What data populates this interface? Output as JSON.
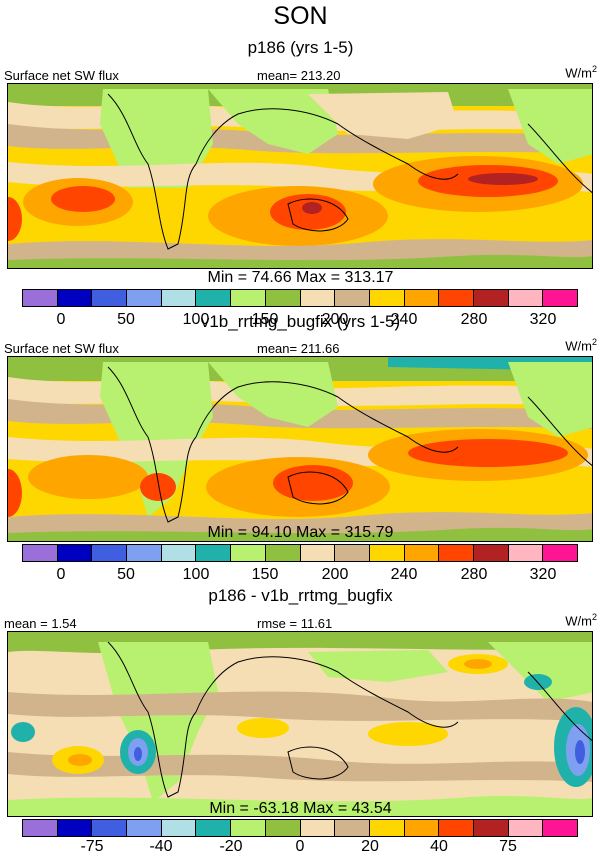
{
  "title": "SON",
  "palette": [
    "#9b6fd9",
    "#0000c0",
    "#3f5fe0",
    "#7f9ff0",
    "#b0e0e6",
    "#20b2aa",
    "#b8f070",
    "#8fc040",
    "#f5deb3",
    "#d2b48c",
    "#ffd700",
    "#ffa500",
    "#ff4500",
    "#b22222",
    "#ffb6c1",
    "#ff1493"
  ],
  "panels": [
    {
      "heading": "p186 (yrs 1-5)",
      "left_label": "Surface net SW flux",
      "center_label": "mean= 213.20",
      "units": "W/m",
      "units_exp": "2",
      "minmax": "Min =  74.66 Max = 313.17",
      "ticks": [
        "0",
        "50",
        "100",
        "150",
        "200",
        "240",
        "280",
        "320"
      ]
    },
    {
      "heading": "v1b_rrtmg_bugfix (yrs 1-5)",
      "left_label": "Surface net SW flux",
      "center_label": "mean= 211.66",
      "units": "W/m",
      "units_exp": "2",
      "minmax": "Min =  94.10 Max = 315.79",
      "ticks": [
        "0",
        "50",
        "100",
        "150",
        "200",
        "240",
        "280",
        "320"
      ]
    },
    {
      "heading": "p186 - v1b_rrtmg_bugfix",
      "left_label": "mean =   1.54",
      "center_label": "rmse =  11.61",
      "units": "W/m",
      "units_exp": "2",
      "minmax": "Min = -63.18 Max =  43.54",
      "ticks": [
        "-75",
        "-40",
        "-20",
        "0",
        "20",
        "40",
        "75"
      ]
    }
  ]
}
